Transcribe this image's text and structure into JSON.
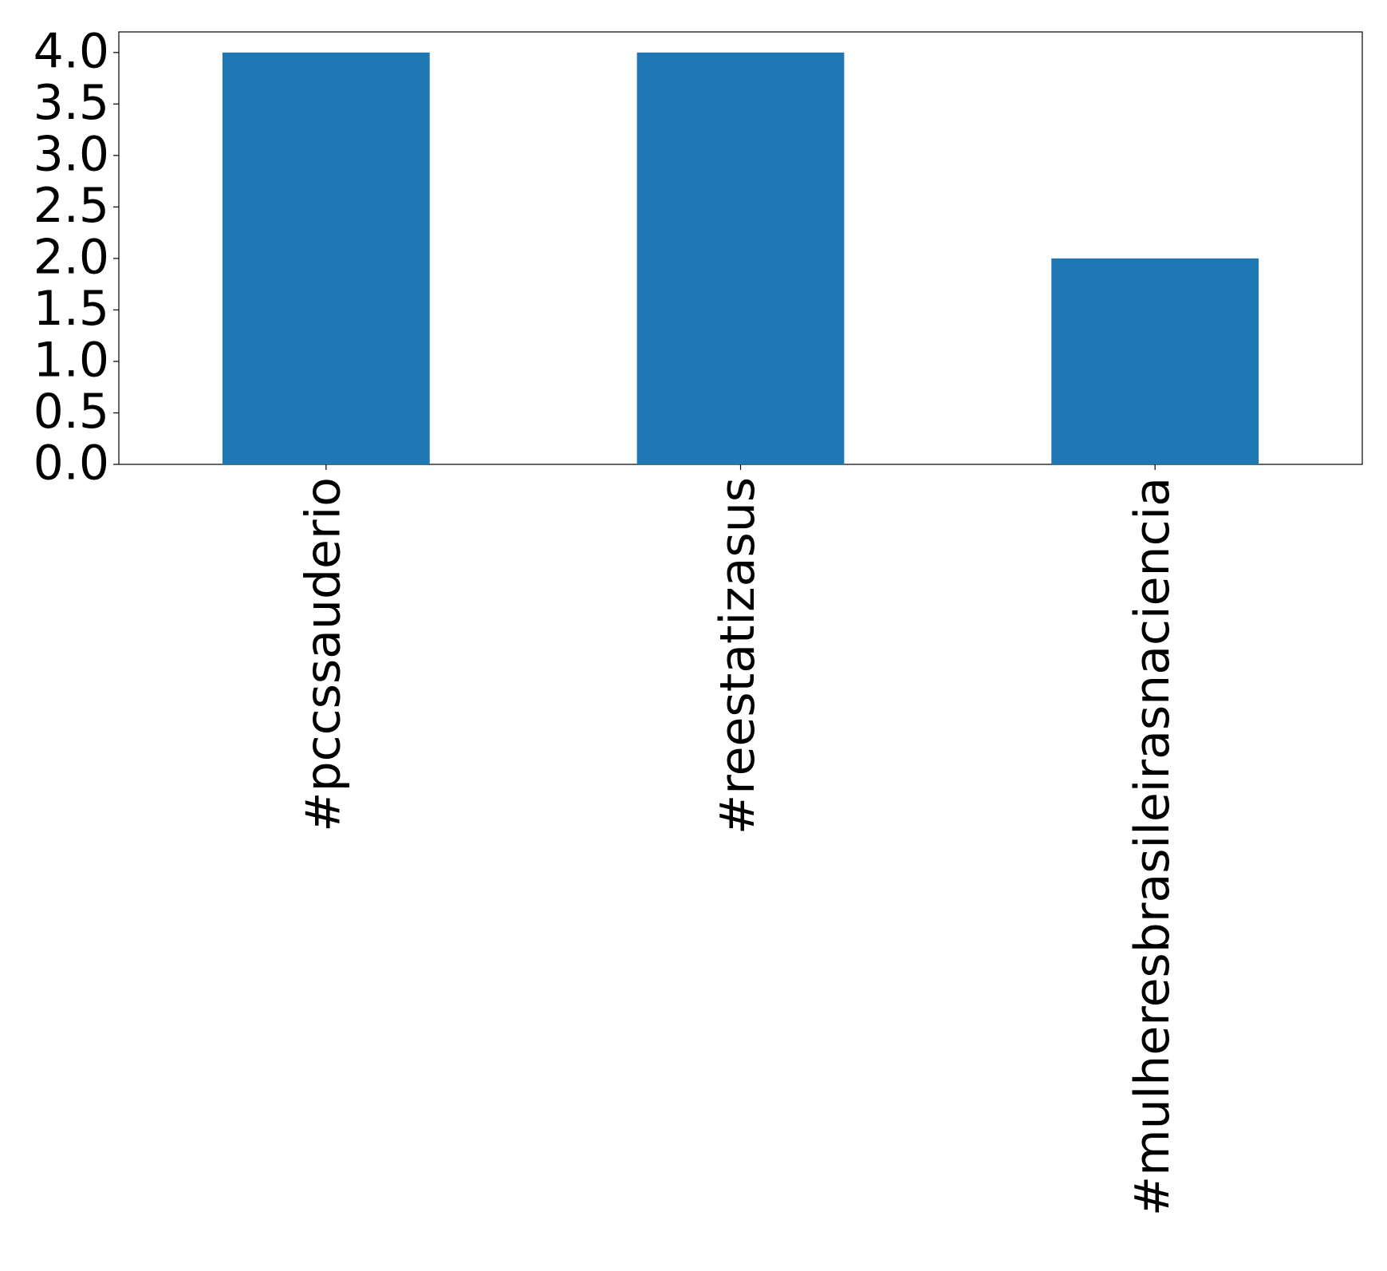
{
  "chart_data": {
    "type": "bar",
    "categories": [
      "#pccssauderio",
      "#reestatizasus",
      "#mulheresbrasileirasnaciencia"
    ],
    "values": [
      4,
      4,
      2
    ],
    "color": "#1f77b4",
    "ylim": [
      0,
      4.2
    ],
    "yticks": [
      {
        "value": 0,
        "label": "0.0"
      },
      0.5,
      {
        "value": 1,
        "label": "1.0"
      },
      1.5,
      {
        "value": 2,
        "label": "2.0"
      },
      2.5,
      {
        "value": 3,
        "label": "3.0"
      },
      3.5,
      {
        "value": 4,
        "label": "4.0"
      }
    ],
    "grid": false
  }
}
